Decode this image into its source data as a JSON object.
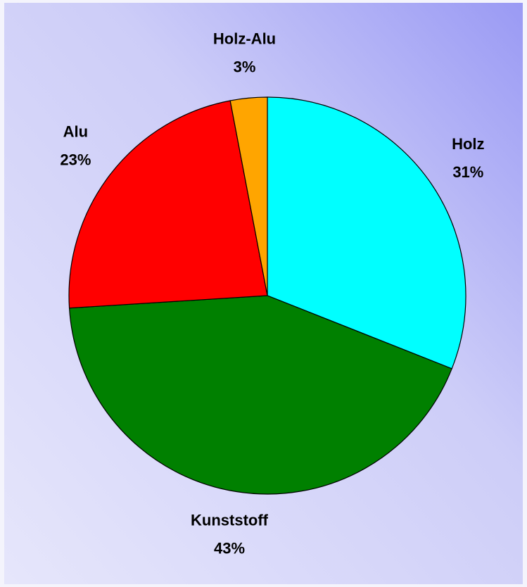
{
  "chart_data": {
    "type": "pie",
    "categories": [
      "Holz",
      "Kunststoff",
      "Alu",
      "Holz-Alu"
    ],
    "values": [
      31,
      43,
      23,
      3
    ],
    "value_labels": [
      "31%",
      "43%",
      "23%",
      "3%"
    ],
    "colors": [
      "#00ffff",
      "#008000",
      "#ff0000",
      "#ffa500"
    ]
  }
}
